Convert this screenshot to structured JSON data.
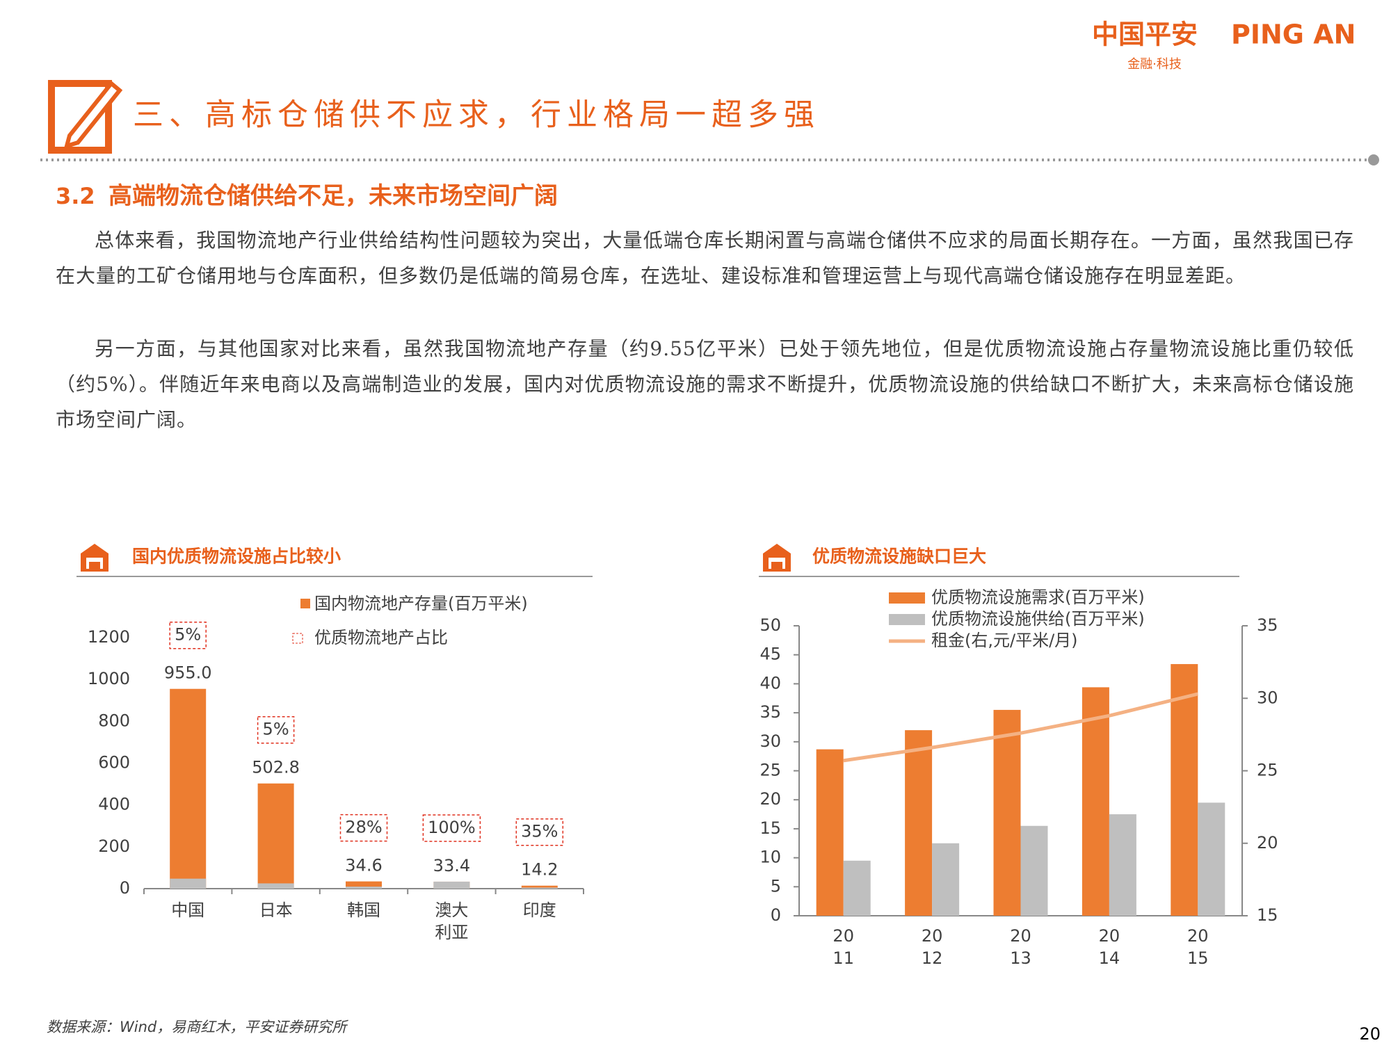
{
  "header": {
    "logo": "中国平安",
    "logo_en": "PING AN",
    "logo_sub": "金融·科技",
    "title": "三、高标仓储供不应求，行业格局一超多强",
    "section_number": "3.2",
    "section_title": "高端物流仓储供给不足，未来市场空间广阔"
  },
  "paragraphs": [
    "总体来看，我国物流地产行业供给结构性问题较为突出，大量低端仓库长期闲置与高端仓储供不应求的局面长期存在。一方面，虽然我国已存在大量的工矿仓储用地与仓库面积，但多数仍是低端的简易仓库，在选址、建设标准和管理运营上与现代高端仓储设施存在明显差距。",
    "另一方面，与其他国家对比来看，虽然我国物流地产存量（约9.55亿平米）已处于领先地位，但是优质物流设施占存量物流设施比重仍较低（约5%）。伴随近年来电商以及高端制造业的发展，国内对优质物流设施的需求不断提升，优质物流设施的供给缺口不断扩大，未来高标仓储设施市场空间广阔。"
  ],
  "chart_data": [
    {
      "type": "bar",
      "title": "国内优质物流设施占比较小",
      "categories": [
        "中国",
        "日本",
        "韩国",
        "澳大利亚",
        "印度"
      ],
      "series": [
        {
          "name": "国内物流地产存量(百万平米)",
          "color": "#ED7D31",
          "values": [
            955.0,
            502.8,
            34.6,
            33.4,
            14.2
          ],
          "value_labels": [
            "955.0",
            "502.8",
            "34.6",
            "33.4",
            "14.2"
          ]
        },
        {
          "name": "优质物流地产占比",
          "color": "#E0301E",
          "values": [
            5,
            5,
            28,
            100,
            35
          ],
          "value_labels": [
            "5%",
            "5%",
            "28%",
            "100%",
            "35%"
          ]
        }
      ],
      "share_color": "#BFBFBF",
      "ylim": [
        0,
        1200
      ],
      "yticks": [
        0,
        200,
        400,
        600,
        800,
        1000,
        1200
      ]
    },
    {
      "type": "combo",
      "title": "优质物流设施缺口巨大",
      "categories": [
        "2011",
        "2012",
        "2013",
        "2014",
        "2015"
      ],
      "series": [
        {
          "name": "优质物流设施需求(百万平米)",
          "type": "bar",
          "color": "#ED7D31",
          "values": [
            28.7,
            32.0,
            35.5,
            39.4,
            43.4
          ]
        },
        {
          "name": "优质物流设施供给(百万平米)",
          "type": "bar",
          "color": "#BFBFBF",
          "values": [
            9.5,
            12.5,
            15.5,
            17.5,
            19.5
          ]
        },
        {
          "name": "租金(右,元/平米/月)",
          "type": "line",
          "color": "#F4B183",
          "axis": "y2",
          "values": [
            25.7,
            26.6,
            27.6,
            28.8,
            30.3
          ]
        }
      ],
      "ylim": [
        0,
        50
      ],
      "yticks": [
        0,
        5,
        10,
        15,
        20,
        25,
        30,
        35,
        40,
        45,
        50
      ],
      "y2lim": [
        15,
        35
      ],
      "y2ticks": [
        15,
        20,
        25,
        30,
        35
      ]
    }
  ],
  "footer": {
    "source": "数据来源：Wind，易商红木，平安证券研究所",
    "page": "20"
  }
}
